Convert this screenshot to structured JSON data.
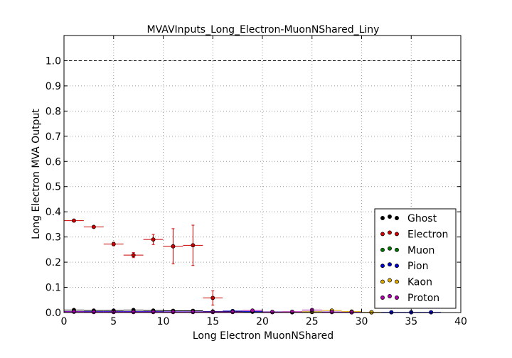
{
  "chart_data": {
    "type": "scatter",
    "title": "MVAVInputs_Long_Electron-MuonNShared_Liny",
    "xlabel": "Long Electron MuonNShared",
    "ylabel": "Long Electron MVA Output",
    "xlim": [
      0,
      40
    ],
    "ylim": [
      0,
      1.1
    ],
    "xticks": [
      0,
      5,
      10,
      15,
      20,
      25,
      30,
      35,
      40
    ],
    "yticks": [
      0.0,
      0.1,
      0.2,
      0.3,
      0.4,
      0.5,
      0.6,
      0.7,
      0.8,
      0.9,
      1.0
    ],
    "grid": true,
    "reference_line": 1.0,
    "legend_position": "bottom-right",
    "series": [
      {
        "name": "Ghost",
        "color": "#000000",
        "points": [
          {
            "x": 1,
            "y": 0.01,
            "xerr": 1,
            "yerr": 0.002
          },
          {
            "x": 3,
            "y": 0.008,
            "xerr": 1,
            "yerr": 0.002
          },
          {
            "x": 5,
            "y": 0.008,
            "xerr": 1,
            "yerr": 0.002
          },
          {
            "x": 7,
            "y": 0.01,
            "xerr": 1,
            "yerr": 0.002
          },
          {
            "x": 9,
            "y": 0.008,
            "xerr": 1,
            "yerr": 0.002
          },
          {
            "x": 11,
            "y": 0.007,
            "xerr": 1,
            "yerr": 0.002
          },
          {
            "x": 13,
            "y": 0.007,
            "xerr": 1,
            "yerr": 0.002
          },
          {
            "x": 15,
            "y": 0.004,
            "xerr": 1,
            "yerr": 0.002
          },
          {
            "x": 17,
            "y": 0.004,
            "xerr": 1,
            "yerr": 0.002
          },
          {
            "x": 19,
            "y": 0.003,
            "xerr": 1,
            "yerr": 0.002
          },
          {
            "x": 21,
            "y": 0.002,
            "xerr": 1,
            "yerr": 0.002
          },
          {
            "x": 23,
            "y": 0.002,
            "xerr": 1,
            "yerr": 0.002
          },
          {
            "x": 25,
            "y": 0.003,
            "xerr": 1,
            "yerr": 0.002
          }
        ]
      },
      {
        "name": "Electron",
        "color": "#cc0000",
        "points": [
          {
            "x": 1,
            "y": 0.365,
            "xerr": 1,
            "yerr": 0.004
          },
          {
            "x": 3,
            "y": 0.34,
            "xerr": 1,
            "yerr": 0.005
          },
          {
            "x": 5,
            "y": 0.272,
            "xerr": 1,
            "yerr": 0.007
          },
          {
            "x": 7,
            "y": 0.228,
            "xerr": 1,
            "yerr": 0.01
          },
          {
            "x": 9,
            "y": 0.29,
            "xerr": 1,
            "yerr": 0.02
          },
          {
            "x": 11,
            "y": 0.263,
            "xerr": 1,
            "yerr": 0.07
          },
          {
            "x": 13,
            "y": 0.267,
            "xerr": 1,
            "yerr": 0.08
          },
          {
            "x": 15,
            "y": 0.058,
            "xerr": 1,
            "yerr": 0.028
          }
        ]
      },
      {
        "name": "Muon",
        "color": "#007700",
        "points": [
          {
            "x": 21,
            "y": 0.002,
            "xerr": 1,
            "yerr": 0.001
          },
          {
            "x": 23,
            "y": 0.001,
            "xerr": 1,
            "yerr": 0.001
          }
        ]
      },
      {
        "name": "Pion",
        "color": "#0000cc",
        "points": [
          {
            "x": 1,
            "y": 0.004,
            "xerr": 1,
            "yerr": 0.001
          },
          {
            "x": 3,
            "y": 0.004,
            "xerr": 1,
            "yerr": 0.001
          },
          {
            "x": 5,
            "y": 0.004,
            "xerr": 1,
            "yerr": 0.001
          },
          {
            "x": 7,
            "y": 0.004,
            "xerr": 1,
            "yerr": 0.001
          },
          {
            "x": 9,
            "y": 0.004,
            "xerr": 1,
            "yerr": 0.001
          },
          {
            "x": 11,
            "y": 0.003,
            "xerr": 1,
            "yerr": 0.001
          },
          {
            "x": 13,
            "y": 0.003,
            "xerr": 1,
            "yerr": 0.001
          },
          {
            "x": 15,
            "y": 0.003,
            "xerr": 1,
            "yerr": 0.001
          },
          {
            "x": 17,
            "y": 0.006,
            "xerr": 1,
            "yerr": 0.001
          },
          {
            "x": 19,
            "y": 0.004,
            "xerr": 1,
            "yerr": 0.001
          },
          {
            "x": 21,
            "y": 0.002,
            "xerr": 1,
            "yerr": 0.001
          },
          {
            "x": 23,
            "y": 0.002,
            "xerr": 1,
            "yerr": 0.001
          },
          {
            "x": 25,
            "y": 0.002,
            "xerr": 1,
            "yerr": 0.001
          },
          {
            "x": 27,
            "y": 0.002,
            "xerr": 1,
            "yerr": 0.001
          },
          {
            "x": 29,
            "y": 0.001,
            "xerr": 1,
            "yerr": 0.001
          },
          {
            "x": 31,
            "y": 0.001,
            "xerr": 1,
            "yerr": 0.001
          },
          {
            "x": 33,
            "y": 0.001,
            "xerr": 1,
            "yerr": 0.001
          },
          {
            "x": 35,
            "y": 0.001,
            "xerr": 1,
            "yerr": 0.001
          },
          {
            "x": 37,
            "y": 0.001,
            "xerr": 1,
            "yerr": 0.001
          }
        ]
      },
      {
        "name": "Kaon",
        "color": "#ddaa00",
        "points": [
          {
            "x": 23,
            "y": 0.002,
            "xerr": 1,
            "yerr": 0.001
          },
          {
            "x": 25,
            "y": 0.003,
            "xerr": 1,
            "yerr": 0.001
          },
          {
            "x": 27,
            "y": 0.008,
            "xerr": 1,
            "yerr": 0.002
          },
          {
            "x": 29,
            "y": 0.004,
            "xerr": 1,
            "yerr": 0.002
          },
          {
            "x": 31,
            "y": 0.001,
            "xerr": 1,
            "yerr": 0.001
          }
        ]
      },
      {
        "name": "Proton",
        "color": "#aa00aa",
        "points": [
          {
            "x": 1,
            "y": 0.003,
            "xerr": 1,
            "yerr": 0.001
          },
          {
            "x": 3,
            "y": 0.002,
            "xerr": 1,
            "yerr": 0.001
          },
          {
            "x": 5,
            "y": 0.002,
            "xerr": 1,
            "yerr": 0.001
          },
          {
            "x": 7,
            "y": 0.002,
            "xerr": 1,
            "yerr": 0.001
          },
          {
            "x": 9,
            "y": 0.002,
            "xerr": 1,
            "yerr": 0.001
          },
          {
            "x": 11,
            "y": 0.002,
            "xerr": 1,
            "yerr": 0.001
          },
          {
            "x": 13,
            "y": 0.002,
            "xerr": 1,
            "yerr": 0.001
          },
          {
            "x": 15,
            "y": 0.002,
            "xerr": 1,
            "yerr": 0.001
          },
          {
            "x": 17,
            "y": 0.002,
            "xerr": 1,
            "yerr": 0.001
          },
          {
            "x": 19,
            "y": 0.008,
            "xerr": 1,
            "yerr": 0.002
          },
          {
            "x": 21,
            "y": 0.002,
            "xerr": 1,
            "yerr": 0.001
          },
          {
            "x": 23,
            "y": 0.003,
            "xerr": 1,
            "yerr": 0.001
          },
          {
            "x": 25,
            "y": 0.01,
            "xerr": 1,
            "yerr": 0.002
          },
          {
            "x": 27,
            "y": 0.002,
            "xerr": 1,
            "yerr": 0.001
          },
          {
            "x": 29,
            "y": 0.001,
            "xerr": 1,
            "yerr": 0.001
          }
        ]
      }
    ]
  }
}
